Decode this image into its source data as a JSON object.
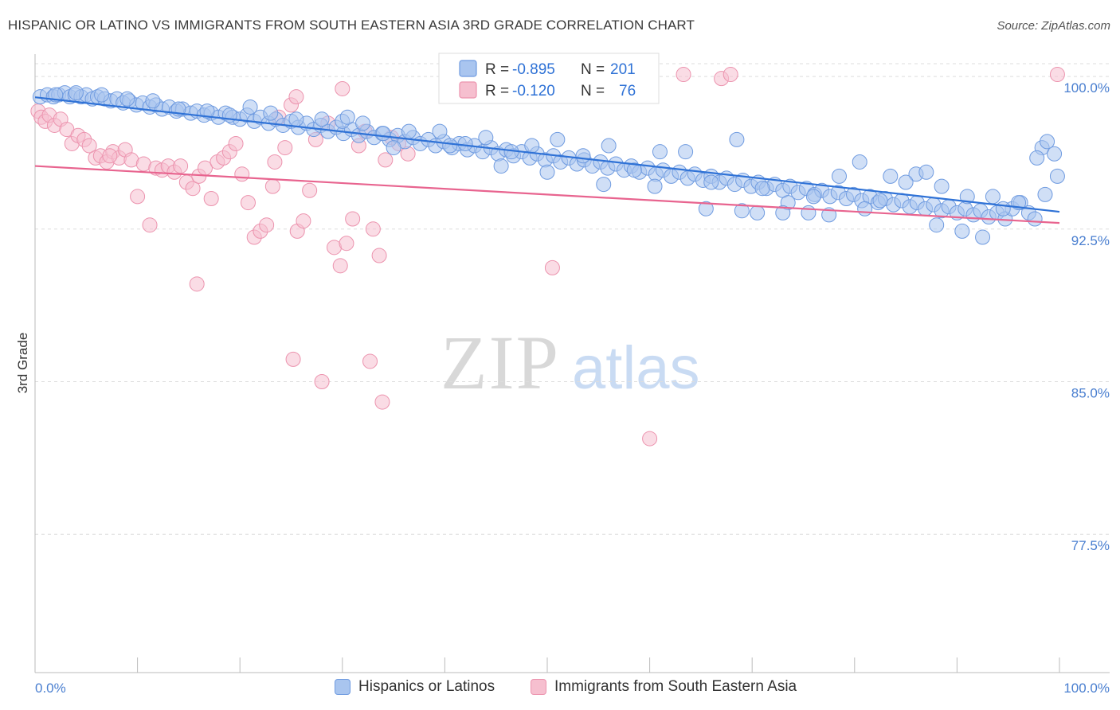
{
  "title": "HISPANIC OR LATINO VS IMMIGRANTS FROM SOUTH EASTERN ASIA 3RD GRADE CORRELATION CHART",
  "source": "Source: ZipAtlas.com",
  "watermark": {
    "zip": "ZIP",
    "atlas": "atlas"
  },
  "colors": {
    "blue_fill": "#a9c5ef",
    "blue_stroke": "#6f9be0",
    "blue_line": "#2f72d6",
    "pink_fill": "#f6bfcf",
    "pink_stroke": "#ec93ae",
    "pink_line": "#e8648f",
    "axis_text": "#4a7fd0",
    "grid": "#dddddd"
  },
  "legend": {
    "rows": [
      {
        "r_label": "R =",
        "r_value": "-0.895",
        "n_label": "N =",
        "n_value": "201",
        "color": "blue"
      },
      {
        "r_label": "R =",
        "r_value": "-0.120",
        "n_label": "N =",
        "n_value": "76",
        "color": "pink"
      }
    ]
  },
  "bottom_legend": [
    {
      "label": "Hispanics or Latinos",
      "color": "blue"
    },
    {
      "label": "Immigrants from South Eastern Asia",
      "color": "pink"
    }
  ],
  "chart_data": {
    "type": "scatter",
    "title": "HISPANIC OR LATINO VS IMMIGRANTS FROM SOUTH EASTERN ASIA 3RD GRADE CORRELATION CHART",
    "xlabel": "",
    "ylabel": "3rd Grade",
    "xlim": [
      0,
      100
    ],
    "ylim": [
      70.7,
      101.1
    ],
    "x_tick_labels": [
      "0.0%",
      "100.0%"
    ],
    "y_ticks": [
      100.0,
      92.5,
      85.0,
      77.5
    ],
    "y_tick_labels": [
      "100.0%",
      "92.5%",
      "85.0%",
      "77.5%"
    ],
    "grid": true,
    "legend_position": "top-center",
    "series": [
      {
        "name": "Hispanics or Latinos",
        "color": "blue",
        "r": -0.895,
        "n": 201,
        "trend": {
          "x": [
            0,
            100
          ],
          "y": [
            98.98,
            93.35
          ]
        },
        "points": [
          [
            0.5,
            99.0
          ],
          [
            1.2,
            99.1
          ],
          [
            1.8,
            99.0
          ],
          [
            2.3,
            99.1
          ],
          [
            2.9,
            99.2
          ],
          [
            3.4,
            99.0
          ],
          [
            3.9,
            99.1
          ],
          [
            4.5,
            99.0
          ],
          [
            5.0,
            99.1
          ],
          [
            5.6,
            98.9
          ],
          [
            6.1,
            99.0
          ],
          [
            6.8,
            98.9
          ],
          [
            7.4,
            98.8
          ],
          [
            8.0,
            98.9
          ],
          [
            8.6,
            98.7
          ],
          [
            9.2,
            98.8
          ],
          [
            9.9,
            98.6
          ],
          [
            10.5,
            98.7
          ],
          [
            11.2,
            98.5
          ],
          [
            11.8,
            98.6
          ],
          [
            12.4,
            98.4
          ],
          [
            13.1,
            98.5
          ],
          [
            13.8,
            98.3
          ],
          [
            14.4,
            98.4
          ],
          [
            15.2,
            98.2
          ],
          [
            15.8,
            98.3
          ],
          [
            16.5,
            98.1
          ],
          [
            17.2,
            98.2
          ],
          [
            17.9,
            98.0
          ],
          [
            18.6,
            98.2
          ],
          [
            19.3,
            98.0
          ],
          [
            20.0,
            97.9
          ],
          [
            20.7,
            98.1
          ],
          [
            21.4,
            97.8
          ],
          [
            22.0,
            98.0
          ],
          [
            22.8,
            97.7
          ],
          [
            23.5,
            97.9
          ],
          [
            24.2,
            97.6
          ],
          [
            25.0,
            97.8
          ],
          [
            25.7,
            97.5
          ],
          [
            26.5,
            97.7
          ],
          [
            27.2,
            97.4
          ],
          [
            27.9,
            97.6
          ],
          [
            28.6,
            97.3
          ],
          [
            29.4,
            97.5
          ],
          [
            30.1,
            97.2
          ],
          [
            30.9,
            97.4
          ],
          [
            31.6,
            97.1
          ],
          [
            32.4,
            97.3
          ],
          [
            33.1,
            97.0
          ],
          [
            33.9,
            97.2
          ],
          [
            34.6,
            96.9
          ],
          [
            35.4,
            97.1
          ],
          [
            36.1,
            96.8
          ],
          [
            36.9,
            97.0
          ],
          [
            37.6,
            96.7
          ],
          [
            38.4,
            96.9
          ],
          [
            39.1,
            96.6
          ],
          [
            39.9,
            96.8
          ],
          [
            40.7,
            96.5
          ],
          [
            41.4,
            96.7
          ],
          [
            42.2,
            96.4
          ],
          [
            42.9,
            96.6
          ],
          [
            43.7,
            96.3
          ],
          [
            44.5,
            96.5
          ],
          [
            45.2,
            96.2
          ],
          [
            46.0,
            96.4
          ],
          [
            46.7,
            96.1
          ],
          [
            47.5,
            96.3
          ],
          [
            48.3,
            96.0
          ],
          [
            49.0,
            96.2
          ],
          [
            49.8,
            95.9
          ],
          [
            50.6,
            96.1
          ],
          [
            51.3,
            95.8
          ],
          [
            52.1,
            96.0
          ],
          [
            52.9,
            95.7
          ],
          [
            53.6,
            95.9
          ],
          [
            54.4,
            95.6
          ],
          [
            55.2,
            95.8
          ],
          [
            55.9,
            95.5
          ],
          [
            56.7,
            95.7
          ],
          [
            57.5,
            95.4
          ],
          [
            58.2,
            95.6
          ],
          [
            59.0,
            95.3
          ],
          [
            59.8,
            95.5
          ],
          [
            60.6,
            95.2
          ],
          [
            61.3,
            95.4
          ],
          [
            62.1,
            95.1
          ],
          [
            62.9,
            95.3
          ],
          [
            63.7,
            95.0
          ],
          [
            64.4,
            95.2
          ],
          [
            65.2,
            94.9
          ],
          [
            66.0,
            95.1
          ],
          [
            66.8,
            94.8
          ],
          [
            67.5,
            95.0
          ],
          [
            68.3,
            94.7
          ],
          [
            69.1,
            94.9
          ],
          [
            69.9,
            94.6
          ],
          [
            70.6,
            94.8
          ],
          [
            71.4,
            94.5
          ],
          [
            72.2,
            94.7
          ],
          [
            73.0,
            94.4
          ],
          [
            73.7,
            94.6
          ],
          [
            74.5,
            94.3
          ],
          [
            75.3,
            94.5
          ],
          [
            76.1,
            94.2
          ],
          [
            76.8,
            94.4
          ],
          [
            77.6,
            94.1
          ],
          [
            78.4,
            94.3
          ],
          [
            79.2,
            94.0
          ],
          [
            79.9,
            94.2
          ],
          [
            80.7,
            93.9
          ],
          [
            81.5,
            94.1
          ],
          [
            82.3,
            93.8
          ],
          [
            83.0,
            94.0
          ],
          [
            83.8,
            93.7
          ],
          [
            84.6,
            93.9
          ],
          [
            85.4,
            93.6
          ],
          [
            86.1,
            93.8
          ],
          [
            86.9,
            93.5
          ],
          [
            87.7,
            93.7
          ],
          [
            88.5,
            93.4
          ],
          [
            89.2,
            93.6
          ],
          [
            90.0,
            93.3
          ],
          [
            90.8,
            93.5
          ],
          [
            91.6,
            93.2
          ],
          [
            92.3,
            93.4
          ],
          [
            93.1,
            93.1
          ],
          [
            93.9,
            93.3
          ],
          [
            94.7,
            93.0
          ],
          [
            95.4,
            93.5
          ],
          [
            96.2,
            93.8
          ],
          [
            97.0,
            93.3
          ],
          [
            97.6,
            93.0
          ],
          [
            98.6,
            94.2
          ],
          [
            98.3,
            96.5
          ],
          [
            98.8,
            96.8
          ],
          [
            99.5,
            96.2
          ],
          [
            99.8,
            95.1
          ],
          [
            97.8,
            96.0
          ],
          [
            2.0,
            99.1
          ],
          [
            4.0,
            99.2
          ],
          [
            6.5,
            99.1
          ],
          [
            9.0,
            98.9
          ],
          [
            11.5,
            98.8
          ],
          [
            14.0,
            98.4
          ],
          [
            16.8,
            98.3
          ],
          [
            19.0,
            98.1
          ],
          [
            21.0,
            98.5
          ],
          [
            23.0,
            98.2
          ],
          [
            25.5,
            97.9
          ],
          [
            28.0,
            97.9
          ],
          [
            30.0,
            97.8
          ],
          [
            32.0,
            97.7
          ],
          [
            34.0,
            97.2
          ],
          [
            36.5,
            97.3
          ],
          [
            39.5,
            97.3
          ],
          [
            42.0,
            96.7
          ],
          [
            44.0,
            97.0
          ],
          [
            46.5,
            96.3
          ],
          [
            48.5,
            96.6
          ],
          [
            51.0,
            96.9
          ],
          [
            53.5,
            96.1
          ],
          [
            56.0,
            96.6
          ],
          [
            58.5,
            95.4
          ],
          [
            61.0,
            96.3
          ],
          [
            63.5,
            96.3
          ],
          [
            66.0,
            94.8
          ],
          [
            68.5,
            96.9
          ],
          [
            71.0,
            94.5
          ],
          [
            73.5,
            93.8
          ],
          [
            76.0,
            94.1
          ],
          [
            78.5,
            95.1
          ],
          [
            81.0,
            93.5
          ],
          [
            83.5,
            95.1
          ],
          [
            86.0,
            95.2
          ],
          [
            88.5,
            94.6
          ],
          [
            91.0,
            94.1
          ],
          [
            93.5,
            94.1
          ],
          [
            96.0,
            93.8
          ],
          [
            30.5,
            98.0
          ],
          [
            35.0,
            96.5
          ],
          [
            40.5,
            96.6
          ],
          [
            45.5,
            95.6
          ],
          [
            50.0,
            95.3
          ],
          [
            55.5,
            94.7
          ],
          [
            60.5,
            94.6
          ],
          [
            65.5,
            93.5
          ],
          [
            70.5,
            93.3
          ],
          [
            75.5,
            93.3
          ],
          [
            80.5,
            95.8
          ],
          [
            85.0,
            94.8
          ],
          [
            88.0,
            92.7
          ],
          [
            90.5,
            92.4
          ],
          [
            92.5,
            92.1
          ],
          [
            73.0,
            93.3
          ],
          [
            77.5,
            93.2
          ],
          [
            82.5,
            93.9
          ],
          [
            87.0,
            95.3
          ],
          [
            94.5,
            93.5
          ],
          [
            69.0,
            93.4
          ]
        ]
      },
      {
        "name": "Immigrants from South Eastern Asia",
        "color": "pink",
        "r": -0.12,
        "n": 76,
        "trend": {
          "x": [
            0,
            100
          ],
          "y": [
            95.6,
            92.8
          ]
        },
        "points": [
          [
            0.3,
            98.3
          ],
          [
            0.6,
            98.0
          ],
          [
            1.0,
            97.8
          ],
          [
            1.4,
            98.1
          ],
          [
            1.9,
            97.6
          ],
          [
            2.5,
            97.9
          ],
          [
            3.1,
            97.4
          ],
          [
            3.6,
            96.7
          ],
          [
            4.2,
            97.1
          ],
          [
            4.8,
            96.9
          ],
          [
            5.3,
            96.6
          ],
          [
            5.9,
            96.0
          ],
          [
            6.4,
            96.1
          ],
          [
            7.0,
            95.8
          ],
          [
            7.6,
            96.3
          ],
          [
            8.2,
            96.0
          ],
          [
            8.8,
            96.4
          ],
          [
            9.4,
            95.9
          ],
          [
            10.0,
            94.1
          ],
          [
            10.6,
            95.7
          ],
          [
            11.2,
            92.7
          ],
          [
            11.8,
            95.5
          ],
          [
            12.4,
            95.4
          ],
          [
            13.0,
            95.6
          ],
          [
            13.6,
            95.3
          ],
          [
            14.2,
            95.6
          ],
          [
            14.8,
            94.8
          ],
          [
            15.4,
            94.5
          ],
          [
            16.0,
            95.1
          ],
          [
            16.6,
            95.5
          ],
          [
            17.2,
            94.0
          ],
          [
            17.8,
            95.8
          ],
          [
            18.4,
            96.0
          ],
          [
            19.0,
            96.3
          ],
          [
            19.6,
            96.7
          ],
          [
            20.2,
            95.2
          ],
          [
            20.8,
            93.8
          ],
          [
            21.4,
            92.1
          ],
          [
            22.0,
            92.4
          ],
          [
            22.6,
            92.7
          ],
          [
            23.2,
            94.6
          ],
          [
            23.8,
            98.0
          ],
          [
            24.4,
            96.5
          ],
          [
            25.0,
            98.6
          ],
          [
            25.6,
            92.4
          ],
          [
            26.2,
            92.9
          ],
          [
            26.8,
            94.4
          ],
          [
            27.4,
            96.9
          ],
          [
            28.0,
            85.0
          ],
          [
            28.6,
            97.7
          ],
          [
            29.2,
            91.6
          ],
          [
            29.8,
            90.7
          ],
          [
            30.4,
            91.8
          ],
          [
            31.0,
            93.0
          ],
          [
            31.6,
            96.6
          ],
          [
            32.2,
            97.3
          ],
          [
            33.0,
            92.5
          ],
          [
            33.6,
            91.2
          ],
          [
            34.2,
            95.9
          ],
          [
            34.8,
            97.0
          ],
          [
            35.5,
            96.7
          ],
          [
            36.4,
            96.2
          ],
          [
            50.5,
            90.6
          ],
          [
            60.0,
            82.2
          ],
          [
            63.3,
            100.1
          ],
          [
            67.0,
            99.9
          ],
          [
            67.9,
            100.1
          ],
          [
            99.8,
            100.1
          ],
          [
            30.0,
            99.4
          ],
          [
            25.2,
            86.1
          ],
          [
            32.7,
            86.0
          ],
          [
            33.9,
            84.0
          ],
          [
            23.4,
            95.8
          ],
          [
            7.3,
            96.1
          ],
          [
            25.5,
            99.0
          ],
          [
            15.8,
            89.8
          ]
        ]
      }
    ]
  }
}
